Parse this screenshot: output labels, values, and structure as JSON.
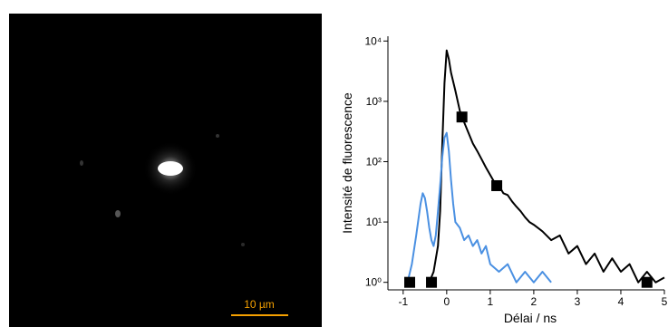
{
  "image": {
    "scale_bar": "10 µm"
  },
  "chart_data": {
    "type": "line",
    "ylabel": "Intensité de fluorescence",
    "xlabel": "Délai / ns",
    "ylog": true,
    "xlim": [
      -1.35,
      5
    ],
    "ylim": [
      0.75,
      12000
    ],
    "xticks": [
      -1,
      0,
      1,
      2,
      3,
      4,
      5
    ],
    "yticks": [
      {
        "value": 1,
        "label": "10⁰"
      },
      {
        "value": 10,
        "label": "10¹"
      },
      {
        "value": 100,
        "label": "10²"
      },
      {
        "value": 1000,
        "label": "10³"
      },
      {
        "value": 10000,
        "label": "10⁴"
      }
    ],
    "series": [
      {
        "color": "#000000",
        "x": [
          -0.4,
          -0.3,
          -0.2,
          -0.15,
          -0.1,
          -0.05,
          0,
          0.05,
          0.1,
          0.2,
          0.3,
          0.4,
          0.5,
          0.6,
          0.7,
          0.8,
          0.9,
          1.0,
          1.1,
          1.2,
          1.3,
          1.4,
          1.5,
          1.6,
          1.7,
          1.8,
          1.9,
          2.0,
          2.2,
          2.4,
          2.6,
          2.8,
          3.0,
          3.2,
          3.4,
          3.6,
          3.8,
          4.0,
          4.2,
          4.4,
          4.6,
          4.8,
          5.0
        ],
        "values": [
          1,
          1.5,
          4,
          15,
          200,
          2000,
          7000,
          5000,
          3000,
          1500,
          700,
          450,
          300,
          200,
          150,
          110,
          80,
          60,
          45,
          40,
          30,
          28,
          22,
          18,
          15,
          12,
          10,
          9,
          7,
          5,
          6,
          3,
          4,
          2,
          3,
          1.5,
          2.5,
          1.5,
          2,
          1,
          1.5,
          1,
          1.2
        ]
      },
      {
        "color": "#4a90e2",
        "x": [
          -0.9,
          -0.8,
          -0.7,
          -0.6,
          -0.55,
          -0.5,
          -0.45,
          -0.4,
          -0.35,
          -0.3,
          -0.25,
          -0.2,
          -0.15,
          -0.1,
          -0.05,
          0,
          0.05,
          0.1,
          0.15,
          0.2,
          0.3,
          0.4,
          0.5,
          0.6,
          0.7,
          0.8,
          0.9,
          1.0,
          1.2,
          1.4,
          1.6,
          1.8,
          2.0,
          2.2,
          2.4
        ],
        "values": [
          1,
          2,
          6,
          20,
          30,
          25,
          15,
          8,
          5,
          4,
          6,
          15,
          40,
          120,
          250,
          300,
          150,
          50,
          20,
          10,
          8,
          5,
          6,
          4,
          5,
          3,
          4,
          2,
          1.5,
          2,
          1,
          1.5,
          1,
          1.5,
          1
        ]
      }
    ],
    "markers": {
      "color": "#000000",
      "x": [
        -0.85,
        -0.35,
        0.35,
        1.15,
        4.6
      ],
      "values": [
        1,
        1,
        550,
        40,
        1
      ]
    }
  }
}
